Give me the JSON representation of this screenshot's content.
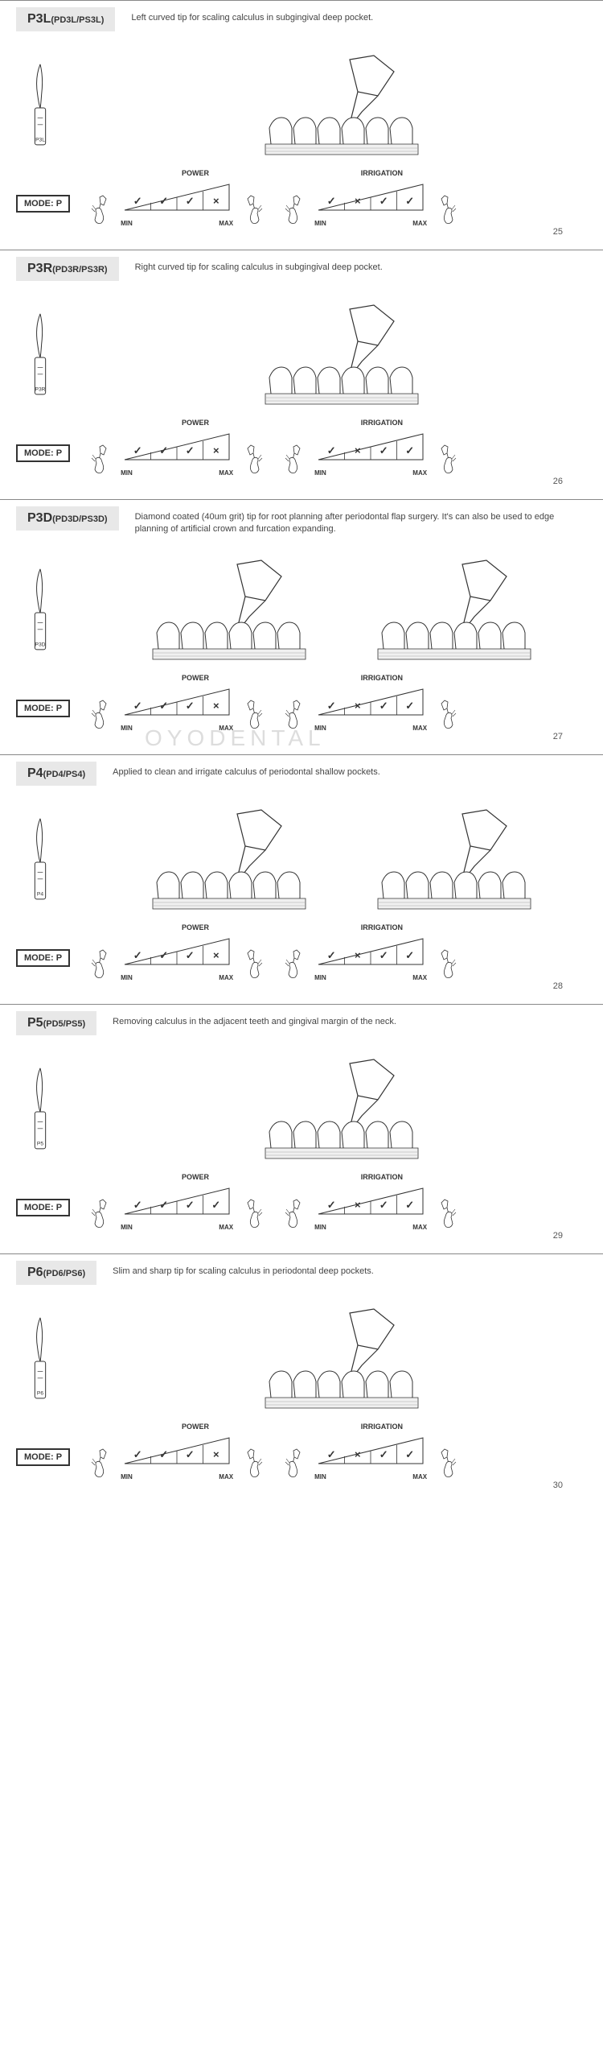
{
  "mode_label": "MODE: P",
  "power_label": "POWER",
  "irrigation_label": "IRRIGATION",
  "min_label": "MIN",
  "max_label": "MAX",
  "check": "✓",
  "cross": "×",
  "sections": [
    {
      "title_main": "P3L",
      "title_sub": "(PD3L/PS3L)",
      "description": "Left curved tip for scaling calculus in subgingival deep pocket.",
      "tip_label": "P3L",
      "power_cells": [
        "✓",
        "✓",
        "✓",
        "×"
      ],
      "irrigation_cells": [
        "✓",
        "×",
        "✓",
        "✓"
      ],
      "page": "25",
      "usage_count": 1
    },
    {
      "title_main": "P3R",
      "title_sub": "(PD3R/PS3R)",
      "description": "Right curved tip for scaling calculus in subgingival deep pocket.",
      "tip_label": "P3R",
      "power_cells": [
        "✓",
        "✓",
        "✓",
        "×"
      ],
      "irrigation_cells": [
        "✓",
        "×",
        "✓",
        "✓"
      ],
      "page": "26",
      "usage_count": 1
    },
    {
      "title_main": "P3D",
      "title_sub": "(PD3D/PS3D)",
      "description": "Diamond coated (40um grit) tip for root planning after periodontal flap surgery. It's can also be used to edge planning of artificial crown and furcation expanding.",
      "tip_label": "P3D",
      "power_cells": [
        "✓",
        "✓",
        "✓",
        "×"
      ],
      "irrigation_cells": [
        "✓",
        "×",
        "✓",
        "✓"
      ],
      "page": "27",
      "usage_count": 2,
      "watermark": "OYODENTAL"
    },
    {
      "title_main": "P4",
      "title_sub": "(PD4/PS4)",
      "description": "Applied to clean and irrigate calculus of periodontal shallow pockets.",
      "tip_label": "P4",
      "power_cells": [
        "✓",
        "✓",
        "✓",
        "×"
      ],
      "irrigation_cells": [
        "✓",
        "×",
        "✓",
        "✓"
      ],
      "page": "28",
      "usage_count": 2
    },
    {
      "title_main": "P5",
      "title_sub": "(PD5/PS5)",
      "description": "Removing calculus in the adjacent teeth and gingival margin of the neck.",
      "tip_label": "P5",
      "power_cells": [
        "✓",
        "✓",
        "✓",
        "✓"
      ],
      "irrigation_cells": [
        "✓",
        "×",
        "✓",
        "✓"
      ],
      "page": "29",
      "usage_count": 1
    },
    {
      "title_main": "P6",
      "title_sub": "(PD6/PS6)",
      "description": "Slim and sharp tip for scaling calculus in periodontal deep pockets.",
      "tip_label": "P6",
      "power_cells": [
        "✓",
        "✓",
        "✓",
        "×"
      ],
      "irrigation_cells": [
        "✓",
        "×",
        "✓",
        "✓"
      ],
      "page": "30",
      "usage_count": 1
    }
  ],
  "colors": {
    "border": "#888888",
    "title_bg": "#e8e8e8",
    "text": "#333333",
    "stroke": "#333333"
  }
}
